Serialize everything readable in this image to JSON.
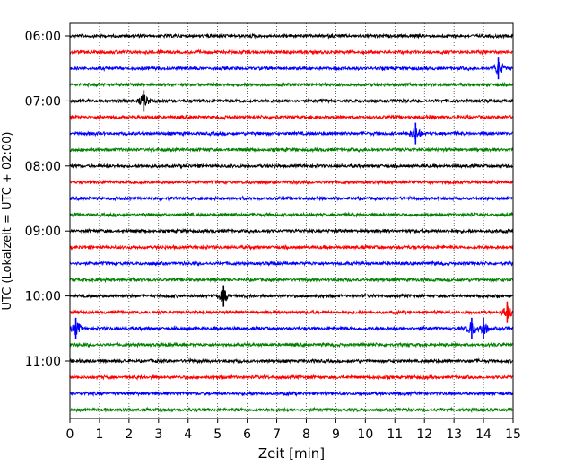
{
  "chart_data": {
    "type": "line",
    "title": "",
    "xlabel": "Zeit  [min]",
    "ylabel": "UTC (Lokalzeit = UTC + 02:00)",
    "xlim": [
      0,
      15
    ],
    "x_ticks": [
      0,
      1,
      2,
      3,
      4,
      5,
      6,
      7,
      8,
      9,
      10,
      11,
      12,
      13,
      14,
      15
    ],
    "y_tick_labels": [
      "06:00",
      "07:00",
      "08:00",
      "09:00",
      "10:00",
      "11:00"
    ],
    "grid": "vertical dotted",
    "trace_interval_minutes": 15,
    "color_cycle": [
      "#000000",
      "#ff0000",
      "#0000ff",
      "#008000"
    ],
    "traces": [
      {
        "start": "06:00",
        "color": "#000000"
      },
      {
        "start": "06:15",
        "color": "#ff0000"
      },
      {
        "start": "06:30",
        "color": "#0000ff"
      },
      {
        "start": "06:45",
        "color": "#008000"
      },
      {
        "start": "07:00",
        "color": "#000000"
      },
      {
        "start": "07:15",
        "color": "#ff0000"
      },
      {
        "start": "07:30",
        "color": "#0000ff"
      },
      {
        "start": "07:45",
        "color": "#008000"
      },
      {
        "start": "08:00",
        "color": "#000000"
      },
      {
        "start": "08:15",
        "color": "#ff0000"
      },
      {
        "start": "08:30",
        "color": "#0000ff"
      },
      {
        "start": "08:45",
        "color": "#008000"
      },
      {
        "start": "09:00",
        "color": "#000000"
      },
      {
        "start": "09:15",
        "color": "#ff0000"
      },
      {
        "start": "09:30",
        "color": "#0000ff"
      },
      {
        "start": "09:45",
        "color": "#008000"
      },
      {
        "start": "10:00",
        "color": "#000000"
      },
      {
        "start": "10:15",
        "color": "#ff0000"
      },
      {
        "start": "10:30",
        "color": "#0000ff"
      },
      {
        "start": "10:45",
        "color": "#008000"
      },
      {
        "start": "11:00",
        "color": "#000000"
      },
      {
        "start": "11:15",
        "color": "#ff0000"
      },
      {
        "start": "11:30",
        "color": "#0000ff"
      },
      {
        "start": "11:45",
        "color": "#008000"
      }
    ],
    "events": [
      {
        "trace": "06:30",
        "minute": 14.5
      },
      {
        "trace": "07:00",
        "minute": 2.5
      },
      {
        "trace": "07:30",
        "minute": 11.7
      },
      {
        "trace": "10:00",
        "minute": 5.2
      },
      {
        "trace": "10:15",
        "minute": 14.8
      },
      {
        "trace": "10:30",
        "minute": 13.6
      },
      {
        "trace": "10:30",
        "minute": 14.0
      },
      {
        "trace": "10:30",
        "minute": 0.2
      }
    ]
  }
}
